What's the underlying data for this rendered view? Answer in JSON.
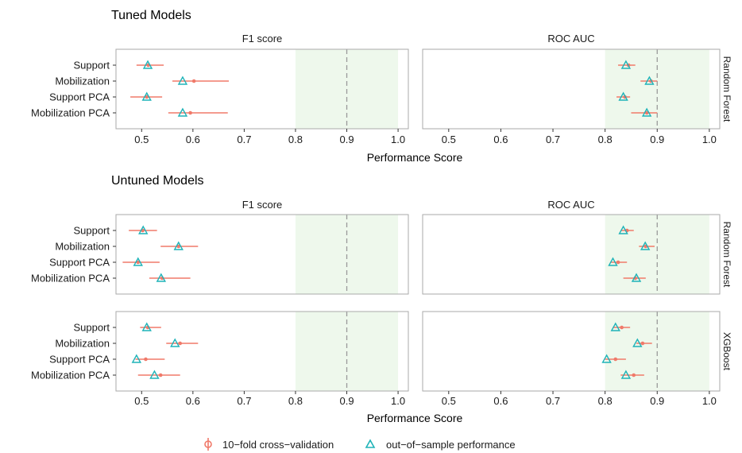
{
  "colors": {
    "cv": "#f07a6a",
    "oos": "#1fb3b8",
    "band": "#eef8ec",
    "ref_line": "#9a9a9a",
    "panel_border": "#aaaaaa"
  },
  "icons": {
    "cv_legend": "point-range-icon",
    "oos_legend": "triangle-icon"
  },
  "chart_data": [
    {
      "type": "scatter",
      "title": "Tuned Models",
      "xlabel": "Performance Score",
      "y_categories": [
        "Support",
        "Mobilization",
        "Support PCA",
        "Mobilization PCA"
      ],
      "legend_position": "bottom",
      "legend": [
        "10−fold cross−validation",
        "out−of−sample performance"
      ],
      "rows": [
        {
          "label": "Random Forest",
          "panels": [
            {
              "title": "F1 score",
              "xlim": [
                0.45,
                1.02
              ],
              "ticks": [
                0.5,
                0.6,
                0.7,
                0.8,
                0.9,
                1.0
              ],
              "tick_labels": [
                "0.5",
                "0.6",
                "0.7",
                "0.8",
                "0.9",
                "1.0"
              ],
              "band": [
                0.8,
                1.0
              ],
              "ref_line": 0.9,
              "series": [
                {
                  "name": "10−fold cross−validation",
                  "mean": [
                    0.513,
                    0.602,
                    0.51,
                    0.595
                  ],
                  "lo": [
                    0.49,
                    0.56,
                    0.478,
                    0.552
                  ],
                  "hi": [
                    0.543,
                    0.67,
                    0.54,
                    0.668
                  ]
                },
                {
                  "name": "out−of−sample performance",
                  "values": [
                    0.512,
                    0.58,
                    0.51,
                    0.58
                  ]
                }
              ]
            },
            {
              "title": "ROC AUC",
              "xlim": [
                0.45,
                1.02
              ],
              "ticks": [
                0.5,
                0.6,
                0.7,
                0.8,
                0.9,
                1.0
              ],
              "tick_labels": [
                "0.5",
                "0.6",
                "0.7",
                "0.8",
                "0.9",
                "1.0"
              ],
              "band": [
                0.8,
                1.0
              ],
              "ref_line": 0.9,
              "series": [
                {
                  "name": "10−fold cross−validation",
                  "mean": [
                    0.845,
                    0.888,
                    0.838,
                    0.88
                  ],
                  "lo": [
                    0.825,
                    0.868,
                    0.822,
                    0.85
                  ],
                  "hi": [
                    0.858,
                    0.9,
                    0.848,
                    0.9
                  ]
                },
                {
                  "name": "out−of−sample performance",
                  "values": [
                    0.84,
                    0.885,
                    0.835,
                    0.88
                  ]
                }
              ]
            }
          ]
        }
      ]
    },
    {
      "type": "scatter",
      "title": "Untuned Models",
      "xlabel": "Performance Score",
      "y_categories": [
        "Support",
        "Mobilization",
        "Support PCA",
        "Mobilization PCA"
      ],
      "legend_position": "bottom",
      "legend": [
        "10−fold cross−validation",
        "out−of−sample performance"
      ],
      "rows": [
        {
          "label": "Random Forest",
          "panels": [
            {
              "title": "F1 score",
              "xlim": [
                0.45,
                1.02
              ],
              "ticks": [
                0.5,
                0.6,
                0.7,
                0.8,
                0.9,
                1.0
              ],
              "tick_labels": [
                "0.5",
                "0.6",
                "0.7",
                "0.8",
                "0.9",
                "1.0"
              ],
              "band": [
                0.8,
                1.0
              ],
              "ref_line": 0.9,
              "series": [
                {
                  "name": "10−fold cross−validation",
                  "mean": [
                    0.502,
                    0.572,
                    0.493,
                    0.54
                  ],
                  "lo": [
                    0.475,
                    0.537,
                    0.463,
                    0.515
                  ],
                  "hi": [
                    0.53,
                    0.61,
                    0.535,
                    0.595
                  ]
                },
                {
                  "name": "out−of−sample performance",
                  "values": [
                    0.503,
                    0.572,
                    0.493,
                    0.538
                  ]
                }
              ]
            },
            {
              "title": "ROC AUC",
              "xlim": [
                0.45,
                1.02
              ],
              "ticks": [
                0.5,
                0.6,
                0.7,
                0.8,
                0.9,
                1.0
              ],
              "tick_labels": [
                "0.5",
                "0.6",
                "0.7",
                "0.8",
                "0.9",
                "1.0"
              ],
              "band": [
                0.8,
                1.0
              ],
              "ref_line": 0.9,
              "series": [
                {
                  "name": "10−fold cross−validation",
                  "mean": [
                    0.842,
                    0.878,
                    0.825,
                    0.858
                  ],
                  "lo": [
                    0.83,
                    0.865,
                    0.81,
                    0.835
                  ],
                  "hi": [
                    0.855,
                    0.895,
                    0.842,
                    0.878
                  ]
                },
                {
                  "name": "out−of−sample performance",
                  "values": [
                    0.835,
                    0.877,
                    0.815,
                    0.86
                  ]
                }
              ]
            }
          ]
        },
        {
          "label": "XGBoost",
          "panels": [
            {
              "title": "",
              "xlim": [
                0.45,
                1.02
              ],
              "ticks": [
                0.5,
                0.6,
                0.7,
                0.8,
                0.9,
                1.0
              ],
              "tick_labels": [
                "0.5",
                "0.6",
                "0.7",
                "0.8",
                "0.9",
                "1.0"
              ],
              "band": [
                0.8,
                1.0
              ],
              "ref_line": 0.9,
              "series": [
                {
                  "name": "10−fold cross−validation",
                  "mean": [
                    0.512,
                    0.575,
                    0.508,
                    0.537
                  ],
                  "lo": [
                    0.497,
                    0.548,
                    0.488,
                    0.493
                  ],
                  "hi": [
                    0.538,
                    0.61,
                    0.545,
                    0.575
                  ]
                },
                {
                  "name": "out−of−sample performance",
                  "values": [
                    0.51,
                    0.565,
                    0.49,
                    0.525
                  ]
                }
              ]
            },
            {
              "title": "",
              "xlim": [
                0.45,
                1.02
              ],
              "ticks": [
                0.5,
                0.6,
                0.7,
                0.8,
                0.9,
                1.0
              ],
              "tick_labels": [
                "0.5",
                "0.6",
                "0.7",
                "0.8",
                "0.9",
                "1.0"
              ],
              "band": [
                0.8,
                1.0
              ],
              "ref_line": 0.9,
              "series": [
                {
                  "name": "10−fold cross−validation",
                  "mean": [
                    0.832,
                    0.872,
                    0.82,
                    0.855
                  ],
                  "lo": [
                    0.815,
                    0.86,
                    0.8,
                    0.83
                  ],
                  "hi": [
                    0.848,
                    0.89,
                    0.84,
                    0.875
                  ]
                },
                {
                  "name": "out−of−sample performance",
                  "values": [
                    0.82,
                    0.862,
                    0.803,
                    0.84
                  ]
                }
              ]
            }
          ]
        }
      ]
    }
  ]
}
